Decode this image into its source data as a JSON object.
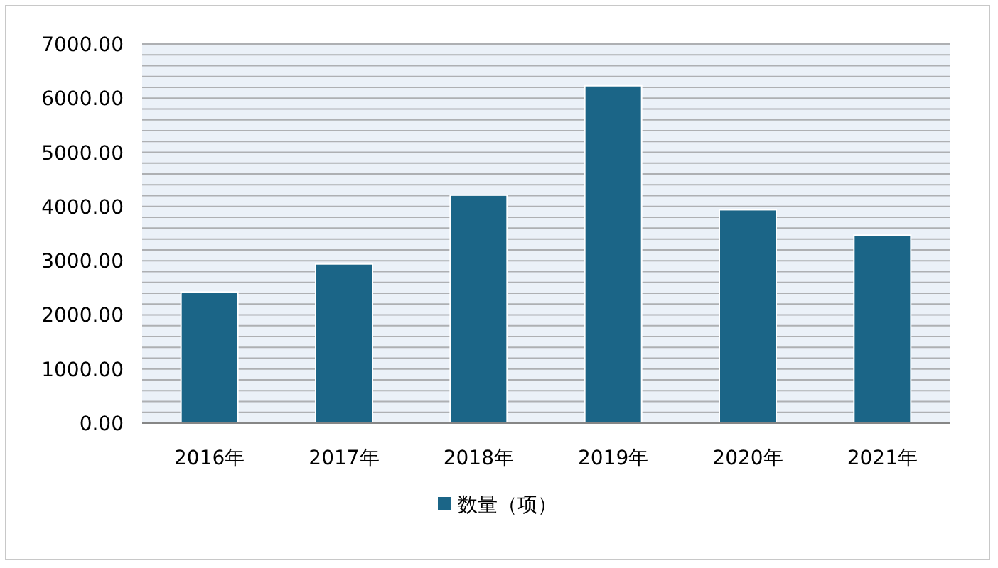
{
  "chart_data": {
    "type": "bar",
    "categories": [
      "2016年",
      "2017年",
      "2018年",
      "2019年",
      "2020年",
      "2021年"
    ],
    "series": [
      {
        "name": "数量（项）",
        "color": "#1b6587",
        "values": [
          2420,
          2940,
          4210,
          6230,
          3940,
          3470
        ]
      }
    ],
    "ylim": [
      0,
      7000
    ],
    "yticks": [
      {
        "value": 0,
        "label": "0.00"
      },
      {
        "value": 1000,
        "label": "1000.00"
      },
      {
        "value": 2000,
        "label": "2000.00"
      },
      {
        "value": 3000,
        "label": "3000.00"
      },
      {
        "value": 4000,
        "label": "4000.00"
      },
      {
        "value": 5000,
        "label": "5000.00"
      },
      {
        "value": 6000,
        "label": "6000.00"
      },
      {
        "value": 7000,
        "label": "7000.00"
      }
    ],
    "grid": true,
    "legend": "bottom"
  }
}
